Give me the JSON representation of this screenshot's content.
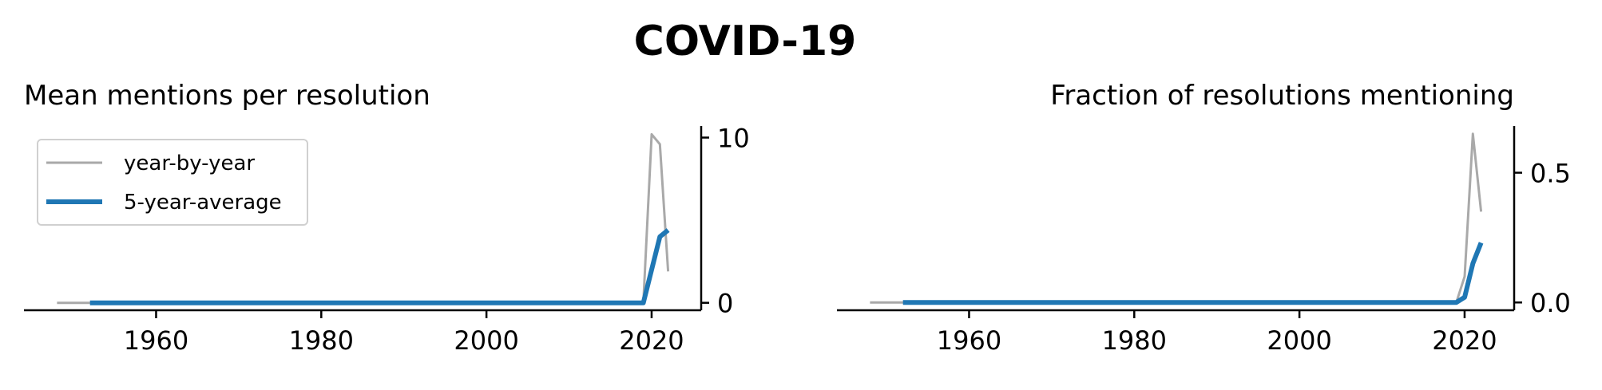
{
  "figure": {
    "title": "COVID-19"
  },
  "chart_data": [
    {
      "type": "line",
      "title": "Mean mentions per resolution",
      "xlabel": "",
      "ylabel": "",
      "xlim": [
        1944,
        2026
      ],
      "ylim": [
        -0.45,
        10.7
      ],
      "xticks": [
        1960,
        1980,
        2000,
        2020
      ],
      "yticks": [
        0,
        10
      ],
      "ytick_labels": [
        "0",
        "10"
      ],
      "y_axis_side": "right",
      "legend": {
        "placement": "upper-left",
        "entries": [
          "year-by-year",
          "5-year-average"
        ]
      },
      "series": [
        {
          "name": "year-by-year",
          "color": "#a9a9a9",
          "x": [
            1948,
            2019,
            2020,
            2021,
            2022
          ],
          "y": [
            0,
            0,
            10.2,
            9.6,
            1.9
          ]
        },
        {
          "name": "5-year-average",
          "color": "#1f77b4",
          "x": [
            1952,
            2019,
            2021,
            2022
          ],
          "y": [
            0,
            0,
            4.0,
            4.4
          ]
        }
      ]
    },
    {
      "type": "line",
      "title": "Fraction of resolutions mentioning",
      "xlabel": "",
      "ylabel": "",
      "xlim": [
        1944,
        2026
      ],
      "ylim": [
        -0.03,
        0.68
      ],
      "xticks": [
        1960,
        1980,
        2000,
        2020
      ],
      "yticks": [
        0,
        0.5
      ],
      "ytick_labels": [
        "0.0",
        "0.5"
      ],
      "y_axis_side": "right",
      "series": [
        {
          "name": "year-by-year",
          "color": "#a9a9a9",
          "x": [
            1948,
            2019,
            2020,
            2021,
            2022
          ],
          "y": [
            0,
            0,
            0.1,
            0.65,
            0.35
          ]
        },
        {
          "name": "5-year-average",
          "color": "#1f77b4",
          "x": [
            1952,
            2019,
            2020,
            2021,
            2022
          ],
          "y": [
            0,
            0,
            0.02,
            0.15,
            0.23
          ]
        }
      ]
    }
  ]
}
